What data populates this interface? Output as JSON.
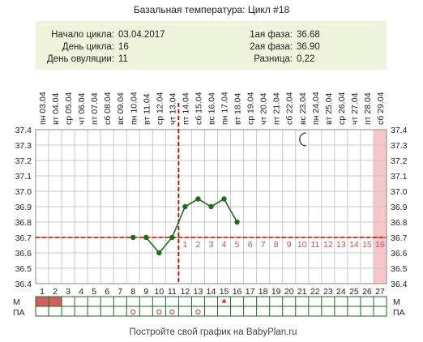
{
  "chart_data": {
    "type": "line",
    "title": "Базальная температура: Цикл #18",
    "info": {
      "start_label": "Начало цикла:",
      "start_value": "03.04.2017",
      "cycle_day_label": "День цикла:",
      "cycle_day_value": "16",
      "ovulation_day_label": "День овуляции:",
      "ovulation_day_value": "11",
      "phase1_label": "1ая фаза:",
      "phase1_value": "36.68",
      "phase2_label": "2ая фаза:",
      "phase2_value": "36.90",
      "diff_label": "Разница:",
      "diff_value": "0,22"
    },
    "weekdays": [
      "пн",
      "вт",
      "ср",
      "чт",
      "пт",
      "сб",
      "вс",
      "пн",
      "вт",
      "ср",
      "чт",
      "пт",
      "сб",
      "вс",
      "пн",
      "вт",
      "ср",
      "чт",
      "пт",
      "сб",
      "вс",
      "пн",
      "вт",
      "ср",
      "чт",
      "пт",
      "сб"
    ],
    "dates": [
      "03.04",
      "04.04",
      "05.04",
      "06.04",
      "07.04",
      "08.04",
      "09.04",
      "10.04",
      "11.04",
      "12.04",
      "13.04",
      "14.04",
      "15.04",
      "16.04",
      "17.04",
      "18.04",
      "19.04",
      "20.04",
      "21.04",
      "22.04",
      "23.04",
      "24.04",
      "25.04",
      "26.04",
      "27.04",
      "28.04",
      "29.04"
    ],
    "days": [
      "1",
      "2",
      "3",
      "4",
      "5",
      "6",
      "7",
      "8",
      "9",
      "10",
      "11",
      "12",
      "13",
      "14",
      "15",
      "16",
      "17",
      "18",
      "19",
      "20",
      "21",
      "22",
      "23",
      "24",
      "25",
      "26",
      "27"
    ],
    "y_ticks": [
      "37.4",
      "37.3",
      "37.2",
      "37.1",
      "37.0",
      "36.9",
      "36.8",
      "36.7",
      "36.6",
      "36.5",
      "36.4"
    ],
    "ylim": [
      36.4,
      37.4
    ],
    "series": [
      {
        "color": "#1e6b1e",
        "points": [
          {
            "day": 8,
            "value": 36.7
          },
          {
            "day": 9,
            "value": 36.7
          },
          {
            "day": 10,
            "value": 36.6
          },
          {
            "day": 11,
            "value": 36.7
          },
          {
            "day": 12,
            "value": 36.9
          },
          {
            "day": 13,
            "value": 36.95
          },
          {
            "day": 14,
            "value": 36.9
          },
          {
            "day": 15,
            "value": 36.95
          },
          {
            "day": 16,
            "value": 36.8
          }
        ],
        "segments": [
          [
            9,
            10
          ],
          [
            10,
            11
          ],
          [
            11,
            12
          ],
          [
            12,
            13
          ],
          [
            13,
            14
          ],
          [
            14,
            15
          ],
          [
            15,
            16
          ]
        ]
      }
    ],
    "coverline": {
      "value": 36.7,
      "color": "#cc0000",
      "background": "#a04040"
    },
    "ovulation_day": 11,
    "luteal_labels": [
      {
        "day": 12,
        "text": "1"
      },
      {
        "day": 13,
        "text": "2"
      },
      {
        "day": 14,
        "text": "3"
      },
      {
        "day": 15,
        "text": "4"
      },
      {
        "day": 16,
        "text": "5"
      },
      {
        "day": 17,
        "text": "6"
      },
      {
        "day": 18,
        "text": "7"
      },
      {
        "day": 19,
        "text": "8"
      },
      {
        "day": 20,
        "text": "9"
      },
      {
        "day": 21,
        "text": "10"
      },
      {
        "day": 22,
        "text": "11"
      },
      {
        "day": 23,
        "text": "12"
      },
      {
        "day": 24,
        "text": "13"
      },
      {
        "day": 25,
        "text": "14"
      },
      {
        "day": 26,
        "text": "15"
      },
      {
        "day": 27,
        "text": "16"
      }
    ],
    "highlight_day": 27,
    "moon_day": 21,
    "rows": {
      "m_label": "М",
      "pa_label": "ПА",
      "m_filled_days": [
        1,
        2
      ],
      "pa_marks": [
        {
          "day": 8,
          "symbol": "o"
        },
        {
          "day": 10,
          "symbol": "o"
        },
        {
          "day": 11,
          "symbol": "o"
        },
        {
          "day": 13,
          "symbol": "o"
        }
      ],
      "star_day": 15
    },
    "grid": true,
    "colors": {
      "info_bg": "#eef5dc",
      "grid": "#c8c8c8",
      "highlight": "#f8c8c8",
      "menstruation": "#d06060",
      "rows_border": "#1e6b1e",
      "luteal_text": "#cc5050",
      "ovulation_line": "#cc0000",
      "moon": "#333333",
      "star": "#cc3333"
    },
    "footer": "Постройте свой график на BabyPlan.ru"
  }
}
